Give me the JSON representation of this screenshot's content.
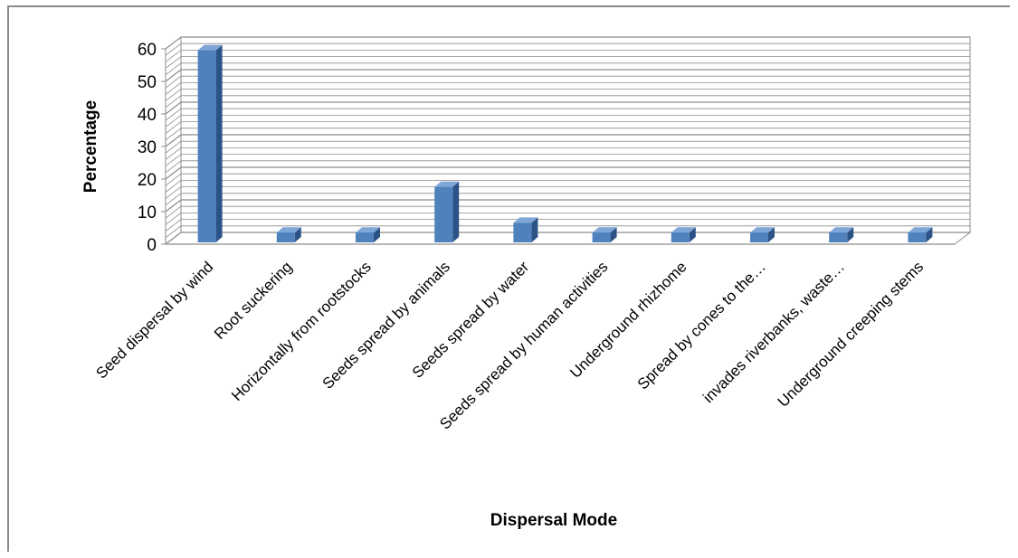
{
  "chart_data": {
    "type": "bar",
    "style": "3d-column",
    "xlabel": "Dispersal Mode",
    "ylabel": "Percentage",
    "ylim": [
      0,
      60
    ],
    "yticks": [
      "0",
      "10",
      "20",
      "30",
      "40",
      "50",
      "60"
    ],
    "grid": true,
    "legend": "none",
    "categories": [
      "Seed dispersal by wind",
      "Root suckering",
      "Horizontally from rootstocks",
      "Seeds spread by animals",
      "Seeds spread by water",
      "Seeds spread by human activities",
      "Underground rhizhome",
      "Spread by cones to the…",
      "invades riverbanks, waste…",
      "Underground creeping stems"
    ],
    "values": [
      59,
      3,
      3,
      17,
      6,
      3,
      3,
      3,
      3,
      3
    ],
    "colors": {
      "bar_front": "#4f81bd",
      "bar_side": "#2c5386",
      "bar_top": "#7ea6d6",
      "grid": "#8c8c8c"
    }
  }
}
